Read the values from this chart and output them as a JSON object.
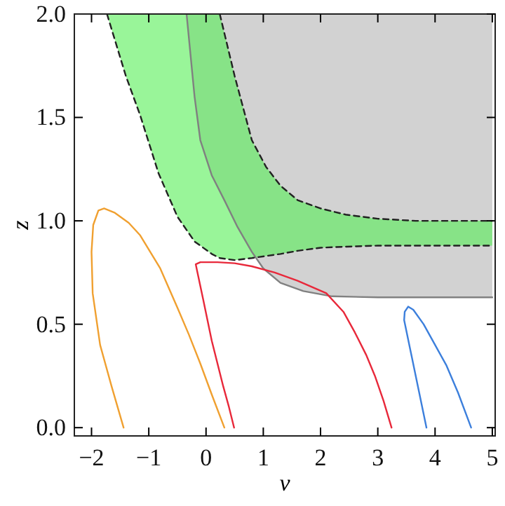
{
  "chart_data": {
    "type": "line",
    "xlabel": "v",
    "ylabel": "z",
    "xlim": [
      -2.3,
      5.05
    ],
    "ylim": [
      -0.04,
      2.0
    ],
    "xticks": [
      {
        "value": -2,
        "label": "−2"
      },
      {
        "value": -1,
        "label": "−1"
      },
      0,
      1,
      2,
      3,
      4,
      5
    ],
    "yticks": [
      {
        "value": 0,
        "label": "0.0"
      },
      {
        "value": 0.5,
        "label": "0.5"
      },
      {
        "value": 1,
        "label": "1.0"
      },
      {
        "value": 1.5,
        "label": "1.5"
      },
      {
        "value": 2,
        "label": "2.0"
      }
    ],
    "grid": false,
    "marker": "none",
    "series": [
      {
        "color": "#808080",
        "line_style": "solid",
        "x": [
          -0.34,
          -0.2,
          -0.1,
          0.1,
          0.32,
          0.55,
          0.8,
          1.0,
          1.3,
          1.7,
          2.2,
          3.0,
          5.0
        ],
        "values": [
          2.0,
          1.6,
          1.39,
          1.22,
          1.1,
          0.97,
          0.85,
          0.77,
          0.7,
          0.66,
          0.635,
          0.63,
          0.63
        ],
        "lower": [
          2.0,
          1.6,
          1.39,
          1.22,
          1.1,
          0.97,
          0.85,
          0.77,
          0.7,
          0.66,
          0.635,
          0.63,
          0.63
        ],
        "upper": [
          2,
          2,
          2,
          2,
          2,
          2,
          2,
          2,
          2,
          2,
          2,
          2,
          2
        ]
      },
      {
        "color": "#222222",
        "line_style": "dashed",
        "x": [
          -1.73,
          -1.4,
          -1.15,
          -0.83,
          -0.5,
          -0.2,
          0.1,
          0.24,
          0.5,
          0.8,
          1.05,
          1.3,
          1.6,
          2.0,
          2.44,
          3.0,
          3.66,
          4.3,
          5.0
        ],
        "values": [
          2.0,
          1.7,
          1.51,
          1.23,
          1.02,
          0.9,
          0.84,
          0.82,
          0.81,
          0.82,
          0.83,
          0.84,
          0.855,
          0.87,
          0.875,
          0.88,
          0.88,
          0.88,
          0.88
        ],
        "lower": [
          2.0,
          1.7,
          1.51,
          1.23,
          1.02,
          0.9,
          0.84,
          0.82,
          0.81,
          0.82,
          0.83,
          0.84,
          0.855,
          0.87,
          0.875,
          0.88,
          0.88,
          0.88,
          0.88
        ],
        "upper": [
          2,
          2,
          2,
          2,
          2,
          2,
          2,
          2,
          1.7,
          1.39,
          1.26,
          1.17,
          1.1,
          1.06,
          1.03,
          1.01,
          1.0,
          1.0,
          1.0
        ]
      },
      {
        "color": "#222222",
        "line_style": "dashed",
        "x": [
          0.24,
          0.5,
          0.8,
          1.05,
          1.3,
          1.6,
          2.0,
          2.44,
          3.0,
          3.66,
          4.3,
          5.0
        ],
        "values": [
          2.0,
          1.7,
          1.39,
          1.26,
          1.17,
          1.1,
          1.06,
          1.03,
          1.01,
          1.0,
          1.0,
          1.0
        ]
      },
      {
        "color": "#f0a030",
        "line_style": "solid",
        "x": [
          -1.44,
          -1.65,
          -1.85,
          -1.98,
          -2.0,
          -1.97,
          -1.88,
          -1.78,
          -1.6,
          -1.35,
          -1.15,
          -0.8,
          -0.5,
          -0.3,
          -0.1,
          0.1,
          0.32
        ],
        "values": [
          0,
          0.2,
          0.4,
          0.65,
          0.85,
          0.98,
          1.05,
          1.06,
          1.04,
          0.99,
          0.93,
          0.77,
          0.58,
          0.45,
          0.31,
          0.16,
          0
        ]
      },
      {
        "color": "#e8283a",
        "line_style": "solid",
        "x": [
          0.49,
          0.4,
          0.3,
          0.1,
          -0.05,
          -0.15,
          -0.18,
          -0.1,
          0.2,
          0.5,
          0.8,
          1.2,
          1.6,
          2.1,
          2.4,
          2.6,
          2.8,
          2.95,
          3.1,
          3.24
        ],
        "values": [
          0,
          0.1,
          0.2,
          0.42,
          0.62,
          0.75,
          0.79,
          0.8,
          0.8,
          0.795,
          0.78,
          0.75,
          0.71,
          0.65,
          0.56,
          0.46,
          0.35,
          0.25,
          0.13,
          0
        ]
      },
      {
        "color": "#3c7fdc",
        "line_style": "solid",
        "x": [
          3.85,
          3.7,
          3.55,
          3.46,
          3.47,
          3.53,
          3.62,
          3.8,
          4.0,
          4.2,
          4.4,
          4.63
        ],
        "values": [
          0,
          0.2,
          0.4,
          0.52,
          0.56,
          0.585,
          0.57,
          0.5,
          0.4,
          0.3,
          0.17,
          0
        ]
      }
    ]
  }
}
